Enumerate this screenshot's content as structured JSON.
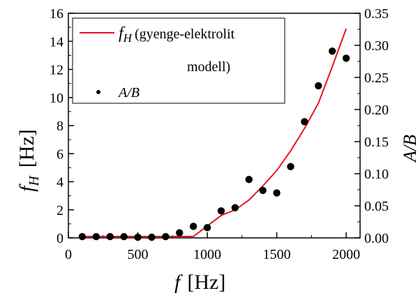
{
  "chart_data": {
    "type": "line",
    "x_axis": {
      "label_main": "f",
      "label_unit": "[Hz]",
      "range": [
        0,
        2100
      ],
      "ticks": [
        0,
        500,
        1000,
        1500,
        2000
      ],
      "tick_labels": [
        "0",
        "500",
        "1000",
        "1500",
        "2000"
      ]
    },
    "y_left_axis": {
      "label_main": "f",
      "label_sub": "H",
      "label_unit": "[Hz]",
      "range": [
        0,
        16
      ],
      "ticks": [
        0,
        2,
        4,
        6,
        8,
        10,
        12,
        14,
        16
      ],
      "tick_labels": [
        "0",
        "2",
        "4",
        "6",
        "8",
        "10",
        "12",
        "14",
        "16"
      ]
    },
    "y_right_axis": {
      "label": "A/B",
      "range": [
        0,
        0.35
      ],
      "ticks": [
        0,
        0.05,
        0.1,
        0.15,
        0.2,
        0.25,
        0.3,
        0.35
      ],
      "tick_labels": [
        "0.00",
        "0.05",
        "0.10",
        "0.15",
        "0.20",
        "0.25",
        "0.30",
        "0.35"
      ]
    },
    "series": [
      {
        "name_main": "f",
        "name_sub": "H",
        "name_rest_line1": "(gyenge-elektrolit",
        "name_rest_line2": "modell)",
        "kind": "line",
        "axis": "left",
        "color": "#e8141c",
        "x": [
          100,
          200,
          300,
          400,
          500,
          600,
          700,
          800,
          900,
          1000,
          1100,
          1200,
          1300,
          1400,
          1500,
          1600,
          1700,
          1800,
          1900,
          2000
        ],
        "y": [
          0.1,
          0.1,
          0.1,
          0.1,
          0.1,
          0.1,
          0.1,
          0.1,
          0.1,
          0.85,
          1.6,
          2.0,
          2.7,
          3.7,
          4.8,
          6.2,
          7.8,
          9.6,
          12.2,
          14.9
        ]
      },
      {
        "name": "A/B",
        "kind": "scatter",
        "axis": "right",
        "color": "#000000",
        "x": [
          100,
          200,
          300,
          400,
          500,
          600,
          700,
          800,
          900,
          1000,
          1100,
          1200,
          1300,
          1400,
          1500,
          1600,
          1700,
          1800,
          1900,
          2000
        ],
        "y": [
          0.002,
          0.002,
          0.002,
          0.002,
          0.001,
          0.001,
          0.002,
          0.008,
          0.018,
          0.016,
          0.042,
          0.047,
          0.091,
          0.074,
          0.07,
          0.111,
          0.181,
          0.237,
          0.291,
          0.28
        ]
      }
    ],
    "grid": false,
    "legend_position": "top-left"
  }
}
